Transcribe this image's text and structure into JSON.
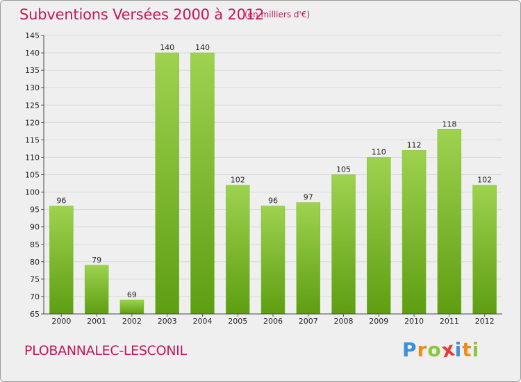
{
  "header": {
    "title": "Subventions Versées 2000 à 2012",
    "subtitle": "(en milliers d'€)"
  },
  "footer": {
    "commune": "PLOBANNALEC-LESCONIL",
    "logo_letters": [
      "P",
      "r",
      "o",
      "x",
      "i",
      "t",
      "i"
    ],
    "logo_colors": [
      "#3d8fd6",
      "#f08a1c",
      "#8cc63f",
      "#e53935",
      "#3d8fd6",
      "#f08a1c",
      "#8cc63f"
    ]
  },
  "colors": {
    "bar_light": "#9ed24f",
    "bar_dark": "#5e9e12",
    "grid": "#d8d8d8",
    "background": "#efefef"
  },
  "chart_data": {
    "type": "bar",
    "title": "Subventions Versées 2000 à 2012",
    "subtitle": "(en milliers d'€)",
    "categories": [
      "2000",
      "2001",
      "2002",
      "2003",
      "2004",
      "2005",
      "2006",
      "2007",
      "2008",
      "2009",
      "2010",
      "2011",
      "2012"
    ],
    "values": [
      96,
      79,
      69,
      140,
      140,
      102,
      96,
      97,
      105,
      110,
      112,
      118,
      102
    ],
    "ylim": [
      65,
      145
    ],
    "yticks": [
      65,
      70,
      75,
      80,
      85,
      90,
      95,
      100,
      105,
      110,
      115,
      120,
      125,
      130,
      135,
      140,
      145
    ],
    "grid": true,
    "data_labels": true
  }
}
